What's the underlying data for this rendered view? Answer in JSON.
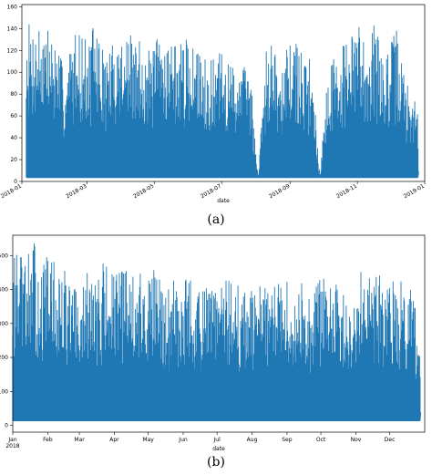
{
  "chart_data": [
    {
      "type": "line",
      "caption": "(a)",
      "xlabel": "date",
      "ylabel": "",
      "color": "#1f77b4",
      "xlim": [
        "2018-01-01",
        "2019-01-01"
      ],
      "ylim": [
        0,
        162
      ],
      "yticks": [
        0,
        20,
        40,
        60,
        80,
        100,
        120,
        140,
        160
      ],
      "xticks": [
        {
          "date": "2018-01-01",
          "label": "2018-01"
        },
        {
          "date": "2018-03-01",
          "label": "2018-03"
        },
        {
          "date": "2018-05-01",
          "label": "2018-05"
        },
        {
          "date": "2018-07-01",
          "label": "2018-07"
        },
        {
          "date": "2018-09-01",
          "label": "2018-09"
        },
        {
          "date": "2018-11-01",
          "label": "2018-11"
        },
        {
          "date": "2019-01-01",
          "label": "2019-01"
        }
      ],
      "baseline": 4,
      "series": [
        {
          "x": [
            "2018-01-05",
            "2018-01-12",
            "2018-01-19",
            "2018-01-26",
            "2018-02-02",
            "2018-02-09",
            "2018-02-16",
            "2018-02-23",
            "2018-03-02",
            "2018-03-09",
            "2018-03-16",
            "2018-03-23",
            "2018-03-30",
            "2018-04-06",
            "2018-04-13",
            "2018-04-20",
            "2018-04-27",
            "2018-05-04",
            "2018-05-11",
            "2018-05-18",
            "2018-05-25",
            "2018-06-01",
            "2018-06-08",
            "2018-06-15",
            "2018-06-22",
            "2018-06-29",
            "2018-07-06",
            "2018-07-13",
            "2018-07-20",
            "2018-07-27",
            "2018-08-03",
            "2018-08-10",
            "2018-08-17",
            "2018-08-24",
            "2018-08-31",
            "2018-09-07",
            "2018-09-14",
            "2018-09-21",
            "2018-09-28",
            "2018-10-05",
            "2018-10-12",
            "2018-10-19",
            "2018-10-26",
            "2018-11-02",
            "2018-11-09",
            "2018-11-16",
            "2018-11-23",
            "2018-11-30",
            "2018-12-07",
            "2018-12-14",
            "2018-12-21",
            "2018-12-28"
          ],
          "values": [
            147,
            145,
            152,
            140,
            128,
            100,
            137,
            140,
            128,
            150,
            118,
            126,
            135,
            140,
            128,
            134,
            118,
            135,
            138,
            130,
            127,
            132,
            118,
            125,
            110,
            120,
            112,
            108,
            110,
            102,
            4,
            118,
            133,
            110,
            125,
            130,
            120,
            108,
            4,
            100,
            122,
            128,
            133,
            148,
            135,
            150,
            120,
            125,
            143,
            96,
            78,
            70
          ]
        }
      ]
    },
    {
      "type": "line",
      "caption": "(b)",
      "xlabel": "date",
      "ylabel": "",
      "color": "#1f77b4",
      "xlim": [
        "2018-01-01",
        "2019-01-01"
      ],
      "ylim": [
        -20,
        560
      ],
      "yticks": [
        0,
        100,
        200,
        300,
        400,
        500
      ],
      "xticks": [
        {
          "date": "2018-01-01",
          "label": "Jan\n2018"
        },
        {
          "date": "2018-02-01",
          "label": "Feb"
        },
        {
          "date": "2018-03-01",
          "label": "Mar"
        },
        {
          "date": "2018-04-01",
          "label": "Apr"
        },
        {
          "date": "2018-05-01",
          "label": "May"
        },
        {
          "date": "2018-06-01",
          "label": "Jun"
        },
        {
          "date": "2018-07-01",
          "label": "Jul"
        },
        {
          "date": "2018-08-01",
          "label": "Aug"
        },
        {
          "date": "2018-09-01",
          "label": "Sep"
        },
        {
          "date": "2018-10-01",
          "label": "Oct"
        },
        {
          "date": "2018-11-01",
          "label": "Nov"
        },
        {
          "date": "2018-12-01",
          "label": "Dec"
        }
      ],
      "baseline": 15,
      "series": [
        {
          "x": [
            "2018-01-05",
            "2018-01-12",
            "2018-01-19",
            "2018-01-26",
            "2018-02-02",
            "2018-02-09",
            "2018-02-16",
            "2018-02-23",
            "2018-03-02",
            "2018-03-09",
            "2018-03-16",
            "2018-03-23",
            "2018-03-30",
            "2018-04-06",
            "2018-04-13",
            "2018-04-20",
            "2018-04-27",
            "2018-05-04",
            "2018-05-11",
            "2018-05-18",
            "2018-05-25",
            "2018-06-01",
            "2018-06-08",
            "2018-06-15",
            "2018-06-22",
            "2018-06-29",
            "2018-07-06",
            "2018-07-13",
            "2018-07-20",
            "2018-07-27",
            "2018-08-03",
            "2018-08-10",
            "2018-08-17",
            "2018-08-24",
            "2018-08-31",
            "2018-09-07",
            "2018-09-14",
            "2018-09-21",
            "2018-09-28",
            "2018-10-05",
            "2018-10-12",
            "2018-10-19",
            "2018-10-26",
            "2018-11-02",
            "2018-11-09",
            "2018-11-16",
            "2018-11-23",
            "2018-11-30",
            "2018-12-07",
            "2018-12-14",
            "2018-12-21",
            "2018-12-28"
          ],
          "values": [
            510,
            490,
            550,
            450,
            530,
            460,
            470,
            420,
            380,
            470,
            430,
            500,
            450,
            460,
            480,
            470,
            430,
            480,
            440,
            410,
            450,
            470,
            430,
            400,
            410,
            420,
            430,
            440,
            410,
            390,
            400,
            430,
            410,
            420,
            430,
            410,
            420,
            380,
            440,
            440,
            430,
            420,
            430,
            450,
            540,
            480,
            440,
            460,
            420,
            440,
            430,
            260
          ]
        }
      ]
    }
  ]
}
